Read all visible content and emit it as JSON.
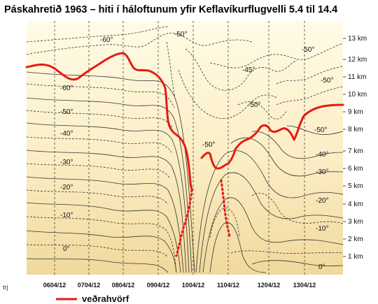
{
  "title": "Páskahretið 1963 – hiti í háloftunum yfir Keflavíkurflugvelli 5.4 til 14.4",
  "altitude_labels": [
    "13 km",
    "12 km",
    "11 km",
    "10 km",
    "9 km",
    "8 km",
    "7 km",
    "6 km",
    "5 km",
    "4 km",
    "3 km",
    "2 km",
    "1 km"
  ],
  "date_labels": [
    "0604/12",
    "0704/12",
    "0804/12",
    "0904/12",
    "1004/12",
    "1104/12",
    "1204/12",
    "1304/12"
  ],
  "isotherm_labels": [
    "-60°",
    "-50°",
    "-50°",
    "-50°",
    "-45°",
    "-50°",
    "-60°",
    "-50°",
    "-40°",
    "-30°",
    "-20°",
    "-10°",
    "0°",
    "-50°",
    "-50°",
    "-40°",
    "-30°",
    "-20°",
    "-10°",
    "0°",
    "-50°"
  ],
  "legend": {
    "label": "veðrahvörf",
    "color": "#e41b12"
  },
  "credit": "trj",
  "colors": {
    "background_top": "#fffbe6",
    "background_bottom": "#f3dda2",
    "tropopause": "#e41b12"
  }
}
